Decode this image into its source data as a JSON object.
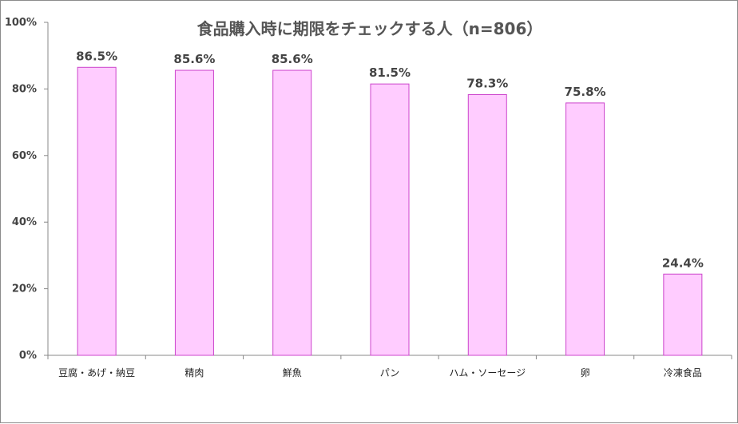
{
  "chart_data": {
    "type": "bar",
    "title": "食品購入時に期限をチェックする人（n=806）",
    "categories": [
      "豆腐・あげ・納豆",
      "精肉",
      "鮮魚",
      "パン",
      "ハム・ソーセージ",
      "卵",
      "冷凍食品"
    ],
    "values": [
      86.5,
      85.6,
      85.6,
      81.5,
      78.3,
      75.8,
      24.4
    ],
    "data_labels": [
      "86.5%",
      "85.6%",
      "85.6%",
      "81.5%",
      "78.3%",
      "75.8%",
      "24.4%"
    ],
    "yticks": [
      "0%",
      "20%",
      "40%",
      "60%",
      "80%",
      "100%"
    ],
    "ylim": [
      0,
      100
    ],
    "xlabel": "",
    "ylabel": "",
    "grid": false,
    "legend": "none",
    "colors": {
      "bar_fill": "#FFCCFF",
      "bar_stroke": "#CC44CC",
      "axis": "#888888"
    }
  }
}
